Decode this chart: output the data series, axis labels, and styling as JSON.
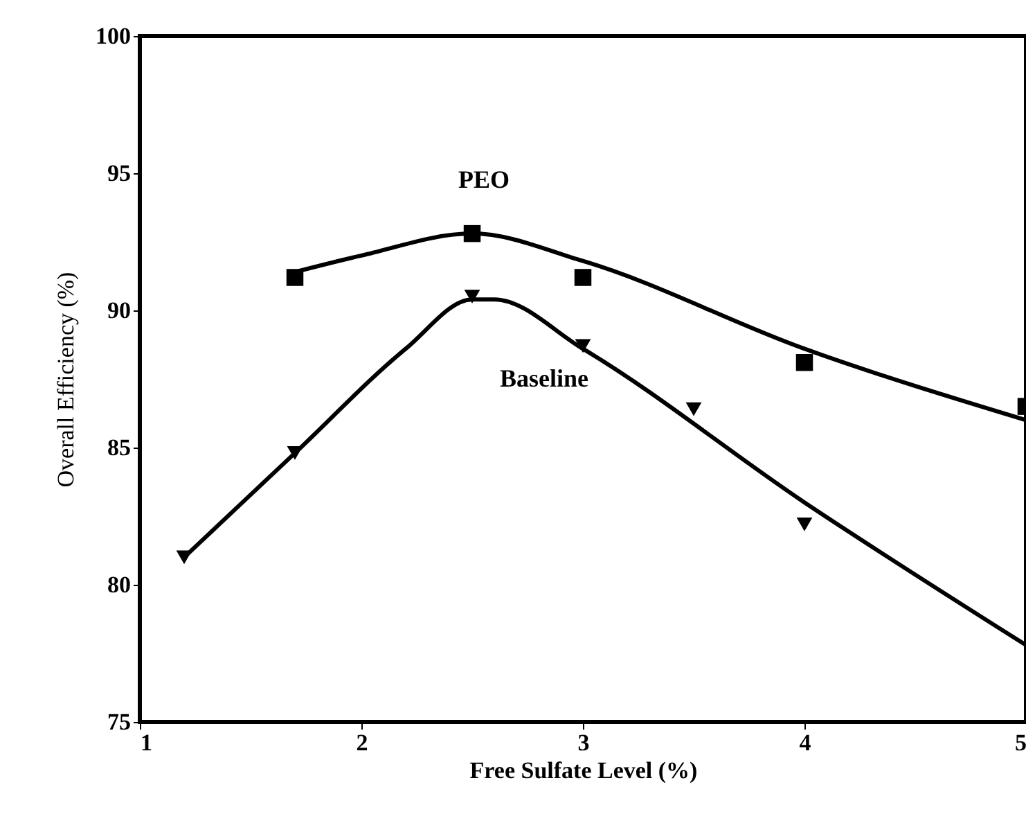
{
  "chart_data": {
    "type": "scatter",
    "xlabel": "Free Sulfate Level (%)",
    "ylabel": "Overall Efficiency (%)",
    "xlim": [
      1,
      5
    ],
    "ylim": [
      75,
      100
    ],
    "xticks": [
      1,
      2,
      3,
      4,
      5
    ],
    "yticks": [
      75,
      80,
      85,
      90,
      95,
      100
    ],
    "grid": false,
    "series": [
      {
        "type": "scatter",
        "marker": "square",
        "color": "#000000",
        "x": [
          1.7,
          2.5,
          3,
          4,
          5
        ],
        "values": [
          91.2,
          92.8,
          91.2,
          88.1,
          86.5
        ]
      },
      {
        "type": "scatter",
        "marker": "triangle",
        "color": "#000000",
        "x": [
          1.2,
          1.7,
          2.5,
          3,
          3.5,
          4
        ],
        "values": [
          81.0,
          84.8,
          90.5,
          88.7,
          86.4,
          82.2
        ]
      },
      {
        "type": "line",
        "name": "PEO",
        "marker": "none",
        "color": "#000000",
        "x": [
          1.7,
          2.0,
          2.5,
          3,
          4,
          5
        ],
        "values": [
          91.4,
          92.0,
          92.8,
          91.8,
          88.6,
          86.0
        ]
      },
      {
        "type": "line",
        "name": "Baseline",
        "marker": "none",
        "color": "#000000",
        "x": [
          1.2,
          1.7,
          2.2,
          2.5,
          2.6,
          3,
          4,
          5
        ],
        "values": [
          81.0,
          84.8,
          88.6,
          90.4,
          90.4,
          88.6,
          83.0,
          77.8
        ]
      }
    ]
  }
}
